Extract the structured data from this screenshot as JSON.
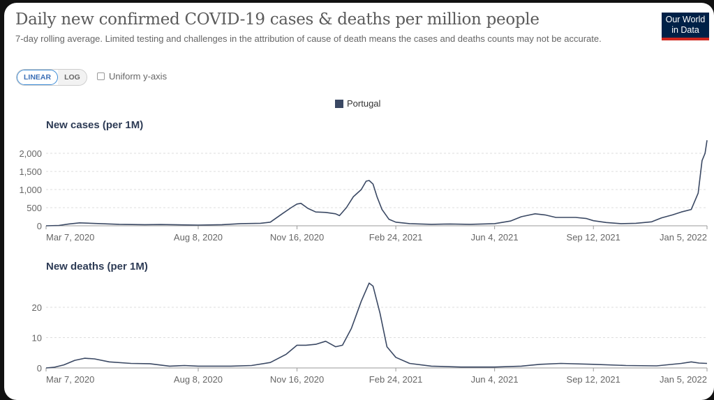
{
  "title": "Daily new confirmed COVID-19 cases & deaths per million people",
  "subtitle": "7-day rolling average. Limited testing and challenges in the attribution of cause of death means the cases and deaths counts may not be accurate.",
  "logo": {
    "line1": "Our World",
    "line2": "in Data"
  },
  "controls": {
    "linear": "LINEAR",
    "log": "LOG",
    "uniform": "Uniform y-axis",
    "uniform_checked": false
  },
  "legend": {
    "label": "Portugal",
    "color": "#3a4863"
  },
  "chart_data": [
    {
      "type": "line",
      "title": "New cases (per 1M)",
      "series": [
        {
          "name": "Portugal",
          "color": "#3a4863"
        }
      ],
      "xlim": [
        "2020-03-07",
        "2022-01-05"
      ],
      "ylim": [
        0,
        2400
      ],
      "xticks": [
        {
          "date": "2020-03-07",
          "label": "Mar 7, 2020"
        },
        {
          "date": "2020-08-08",
          "label": "Aug 8, 2020"
        },
        {
          "date": "2020-11-16",
          "label": "Nov 16, 2020"
        },
        {
          "date": "2021-02-24",
          "label": "Feb 24, 2021"
        },
        {
          "date": "2021-06-04",
          "label": "Jun 4, 2021"
        },
        {
          "date": "2021-09-12",
          "label": "Sep 12, 2021"
        },
        {
          "date": "2022-01-05",
          "label": "Jan 5, 2022"
        }
      ],
      "yticks": [
        {
          "v": 0,
          "label": "0"
        },
        {
          "v": 500,
          "label": "500"
        },
        {
          "v": 1000,
          "label": "1,000"
        },
        {
          "v": 1500,
          "label": "1,500"
        },
        {
          "v": 2000,
          "label": "2,000"
        }
      ],
      "points": [
        [
          "2020-03-07",
          0
        ],
        [
          "2020-03-20",
          10
        ],
        [
          "2020-03-30",
          50
        ],
        [
          "2020-04-10",
          80
        ],
        [
          "2020-05-01",
          60
        ],
        [
          "2020-05-20",
          40
        ],
        [
          "2020-06-15",
          30
        ],
        [
          "2020-07-01",
          35
        ],
        [
          "2020-08-08",
          20
        ],
        [
          "2020-09-01",
          30
        ],
        [
          "2020-09-20",
          60
        ],
        [
          "2020-10-10",
          70
        ],
        [
          "2020-10-20",
          100
        ],
        [
          "2020-11-01",
          330
        ],
        [
          "2020-11-10",
          500
        ],
        [
          "2020-11-16",
          600
        ],
        [
          "2020-11-20",
          620
        ],
        [
          "2020-11-27",
          480
        ],
        [
          "2020-12-05",
          380
        ],
        [
          "2020-12-15",
          370
        ],
        [
          "2020-12-25",
          330
        ],
        [
          "2020-12-29",
          280
        ],
        [
          "2021-01-05",
          500
        ],
        [
          "2021-01-12",
          800
        ],
        [
          "2021-01-20",
          1000
        ],
        [
          "2021-01-25",
          1230
        ],
        [
          "2021-01-28",
          1250
        ],
        [
          "2021-02-01",
          1150
        ],
        [
          "2021-02-05",
          800
        ],
        [
          "2021-02-10",
          450
        ],
        [
          "2021-02-17",
          180
        ],
        [
          "2021-02-24",
          100
        ],
        [
          "2021-03-10",
          60
        ],
        [
          "2021-04-01",
          40
        ],
        [
          "2021-04-20",
          50
        ],
        [
          "2021-05-10",
          40
        ],
        [
          "2021-06-04",
          60
        ],
        [
          "2021-06-20",
          130
        ],
        [
          "2021-07-01",
          250
        ],
        [
          "2021-07-15",
          330
        ],
        [
          "2021-07-25",
          300
        ],
        [
          "2021-08-05",
          230
        ],
        [
          "2021-08-25",
          230
        ],
        [
          "2021-09-05",
          200
        ],
        [
          "2021-09-12",
          140
        ],
        [
          "2021-09-25",
          90
        ],
        [
          "2021-10-10",
          60
        ],
        [
          "2021-10-25",
          70
        ],
        [
          "2021-11-10",
          110
        ],
        [
          "2021-11-20",
          220
        ],
        [
          "2021-12-01",
          300
        ],
        [
          "2021-12-10",
          380
        ],
        [
          "2021-12-20",
          450
        ],
        [
          "2021-12-27",
          900
        ],
        [
          "2021-12-31",
          1800
        ],
        [
          "2022-01-03",
          2000
        ],
        [
          "2022-01-05",
          2360
        ]
      ]
    },
    {
      "type": "line",
      "title": "New deaths (per 1M)",
      "series": [
        {
          "name": "Portugal",
          "color": "#3a4863"
        }
      ],
      "xlim": [
        "2020-03-07",
        "2022-01-05"
      ],
      "ylim": [
        0,
        30
      ],
      "xticks": [
        {
          "date": "2020-03-07",
          "label": "Mar 7, 2020"
        },
        {
          "date": "2020-08-08",
          "label": "Aug 8, 2020"
        },
        {
          "date": "2020-11-16",
          "label": "Nov 16, 2020"
        },
        {
          "date": "2021-02-24",
          "label": "Feb 24, 2021"
        },
        {
          "date": "2021-06-04",
          "label": "Jun 4, 2021"
        },
        {
          "date": "2021-09-12",
          "label": "Sep 12, 2021"
        },
        {
          "date": "2022-01-05",
          "label": "Jan 5, 2022"
        }
      ],
      "yticks": [
        {
          "v": 0,
          "label": "0"
        },
        {
          "v": 10,
          "label": "10"
        },
        {
          "v": 20,
          "label": "20"
        }
      ],
      "points": [
        [
          "2020-03-07",
          0
        ],
        [
          "2020-03-15",
          0.2
        ],
        [
          "2020-03-25",
          1
        ],
        [
          "2020-04-05",
          2.5
        ],
        [
          "2020-04-15",
          3.2
        ],
        [
          "2020-04-25",
          3
        ],
        [
          "2020-05-10",
          2
        ],
        [
          "2020-06-01",
          1.5
        ],
        [
          "2020-06-20",
          1.4
        ],
        [
          "2020-07-10",
          0.6
        ],
        [
          "2020-07-25",
          0.8
        ],
        [
          "2020-08-08",
          0.6
        ],
        [
          "2020-09-10",
          0.6
        ],
        [
          "2020-10-01",
          0.8
        ],
        [
          "2020-10-20",
          1.8
        ],
        [
          "2020-11-05",
          4.5
        ],
        [
          "2020-11-16",
          7.5
        ],
        [
          "2020-11-25",
          7.5
        ],
        [
          "2020-12-05",
          7.8
        ],
        [
          "2020-12-15",
          8.8
        ],
        [
          "2020-12-25",
          7
        ],
        [
          "2021-01-01",
          7.5
        ],
        [
          "2021-01-10",
          13
        ],
        [
          "2021-01-20",
          22
        ],
        [
          "2021-01-28",
          28
        ],
        [
          "2021-02-01",
          27
        ],
        [
          "2021-02-08",
          18
        ],
        [
          "2021-02-15",
          7
        ],
        [
          "2021-02-24",
          3.5
        ],
        [
          "2021-03-10",
          1.5
        ],
        [
          "2021-04-01",
          0.6
        ],
        [
          "2021-05-01",
          0.3
        ],
        [
          "2021-06-04",
          0.3
        ],
        [
          "2021-07-01",
          0.6
        ],
        [
          "2021-07-20",
          1.2
        ],
        [
          "2021-08-10",
          1.5
        ],
        [
          "2021-09-12",
          1.2
        ],
        [
          "2021-10-15",
          0.8
        ],
        [
          "2021-11-15",
          0.7
        ],
        [
          "2021-12-10",
          1.5
        ],
        [
          "2021-12-20",
          2
        ],
        [
          "2021-12-28",
          1.6
        ],
        [
          "2022-01-05",
          1.5
        ]
      ]
    }
  ]
}
